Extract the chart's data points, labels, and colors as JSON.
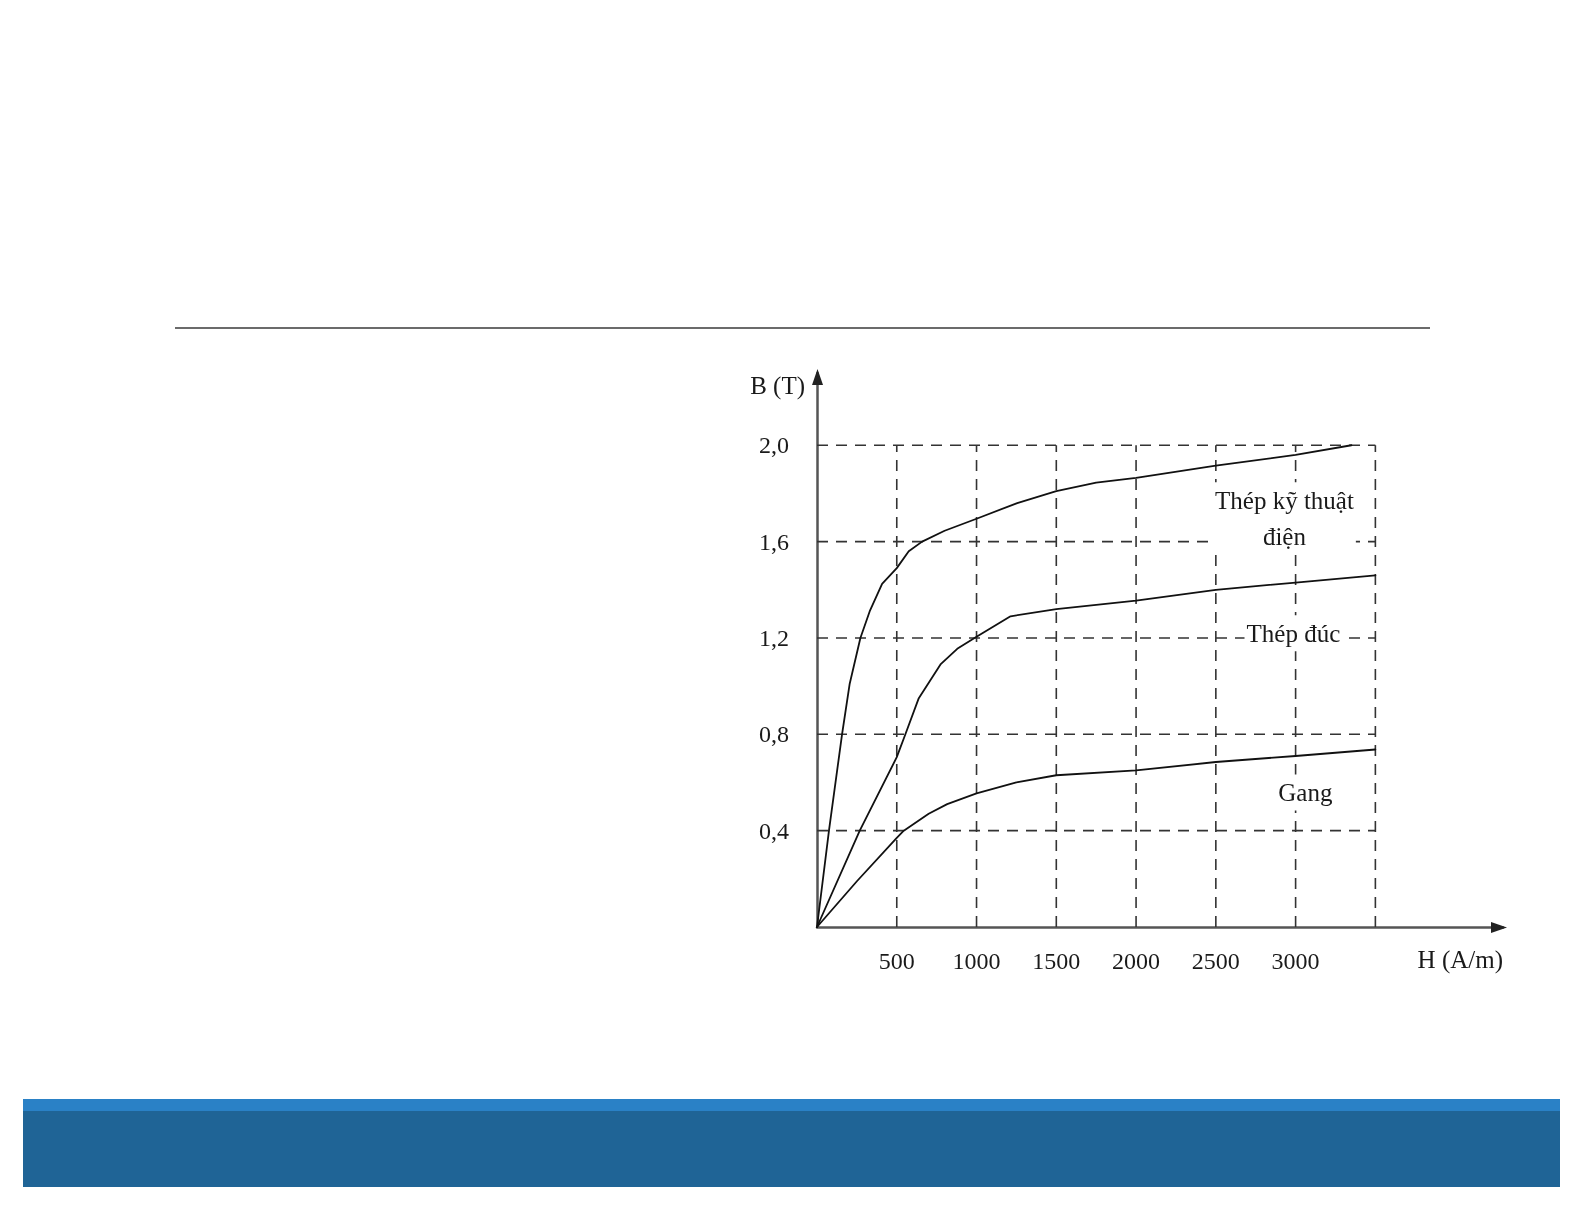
{
  "chart_data": {
    "type": "line",
    "xlabel": "H (A/m)",
    "ylabel": "B (T)",
    "series": [
      {
        "name": "Thép kỹ thuật điện",
        "color": "#111111",
        "x": [
          0,
          75,
          157,
          205,
          272,
          330,
          408,
          500,
          575,
          659,
          800,
          1000,
          1255,
          1500,
          1750,
          2000,
          2500,
          3000,
          3350
        ],
        "values": [
          0,
          0.4,
          0.8,
          1.01,
          1.2,
          1.31,
          1.425,
          1.49,
          1.56,
          1.6,
          1.645,
          1.695,
          1.76,
          1.81,
          1.845,
          1.865,
          1.915,
          1.96,
          2.0
        ]
      },
      {
        "name": "Thép đúc",
        "color": "#111111",
        "x": [
          0,
          268,
          500,
          554,
          638,
          774,
          879,
          1000,
          1213,
          1500,
          2000,
          2500,
          3000,
          3500
        ],
        "values": [
          0,
          0.4,
          0.705,
          0.8,
          0.95,
          1.09,
          1.155,
          1.205,
          1.29,
          1.32,
          1.355,
          1.4,
          1.43,
          1.46
        ]
      },
      {
        "name": "Gang",
        "color": "#111111",
        "x": [
          0,
          250,
          500,
          544,
          700,
          816,
          1000,
          1250,
          1500,
          2000,
          2500,
          3000,
          3500
        ],
        "values": [
          0,
          0.19,
          0.37,
          0.4,
          0.47,
          0.51,
          0.555,
          0.6,
          0.63,
          0.65,
          0.685,
          0.71,
          0.737
        ]
      }
    ],
    "xlim": [
      0,
      4300
    ],
    "ylim": [
      0,
      2.3
    ],
    "xticks": [
      500,
      1000,
      1500,
      2000,
      2500,
      3000,
      {
        "value": 3500,
        "label": null
      }
    ],
    "yticks": [
      {
        "value": 0.4,
        "label": "0,4"
      },
      {
        "value": 0.8,
        "label": "0,8"
      },
      {
        "value": 1.2,
        "label": "1,2"
      },
      {
        "value": 1.6,
        "label": "1,6"
      },
      {
        "value": 2.0,
        "label": "2,0"
      }
    ],
    "grid": true,
    "marker": "none",
    "line_style": "solid"
  }
}
